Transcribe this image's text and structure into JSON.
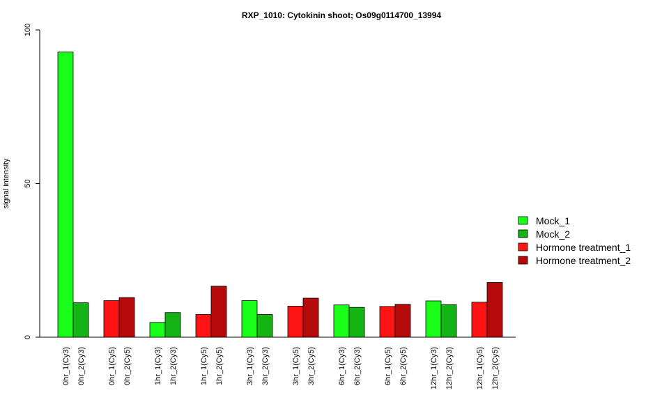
{
  "chart_data": {
    "type": "bar",
    "title": "RXP_1010: Cytokinin shoot; Os09g0114700_13994",
    "ylabel": "signal intensity",
    "xlabel": "",
    "ylim": [
      0,
      100
    ],
    "yticks": [
      0,
      50,
      100
    ],
    "grid": false,
    "legend_position": "right",
    "groups": [
      {
        "series": "Mock",
        "labels": [
          "0hr_1(Cy3)",
          "0hr_2(Cy3)"
        ],
        "values": [
          92.8,
          11.2
        ]
      },
      {
        "series": "Hormone treatment",
        "labels": [
          "0hr_1(Cy5)",
          "0hr_2(Cy5)"
        ],
        "values": [
          11.9,
          12.9
        ]
      },
      {
        "series": "Mock",
        "labels": [
          "1hr_1(Cy3)",
          "1hr_2(Cy3)"
        ],
        "values": [
          4.8,
          8.0
        ]
      },
      {
        "series": "Hormone treatment",
        "labels": [
          "1hr_1(Cy5)",
          "1hr_2(Cy5)"
        ],
        "values": [
          7.4,
          16.6
        ]
      },
      {
        "series": "Mock",
        "labels": [
          "3hr_1(Cy3)",
          "3hr_2(Cy3)"
        ],
        "values": [
          11.9,
          7.4
        ]
      },
      {
        "series": "Hormone treatment",
        "labels": [
          "3hr_1(Cy5)",
          "3hr_2(Cy5)"
        ],
        "values": [
          10.1,
          12.7
        ]
      },
      {
        "series": "Mock",
        "labels": [
          "6hr_1(Cy3)",
          "6hr_2(Cy3)"
        ],
        "values": [
          10.5,
          9.7
        ]
      },
      {
        "series": "Hormone treatment",
        "labels": [
          "6hr_1(Cy5)",
          "6hr_2(Cy5)"
        ],
        "values": [
          10.0,
          10.7
        ]
      },
      {
        "series": "Mock",
        "labels": [
          "12hr_1(Cy3)",
          "12hr_2(Cy3)"
        ],
        "values": [
          11.8,
          10.6
        ]
      },
      {
        "series": "Hormone treatment",
        "labels": [
          "12hr_1(Cy5)",
          "12hr_2(Cy5)"
        ],
        "values": [
          11.4,
          17.8
        ]
      }
    ],
    "legend": [
      {
        "name": "Mock_1",
        "color": "#1aff1a"
      },
      {
        "name": "Mock_2",
        "color": "#14b414"
      },
      {
        "name": "Hormone treatment_1",
        "color": "#ff1414"
      },
      {
        "name": "Hormone treatment_2",
        "color": "#b40a0a"
      }
    ],
    "colors": {
      "Mock": [
        "#1aff1a",
        "#14b414"
      ],
      "Hormone treatment": [
        "#ff1414",
        "#b40a0a"
      ]
    }
  }
}
